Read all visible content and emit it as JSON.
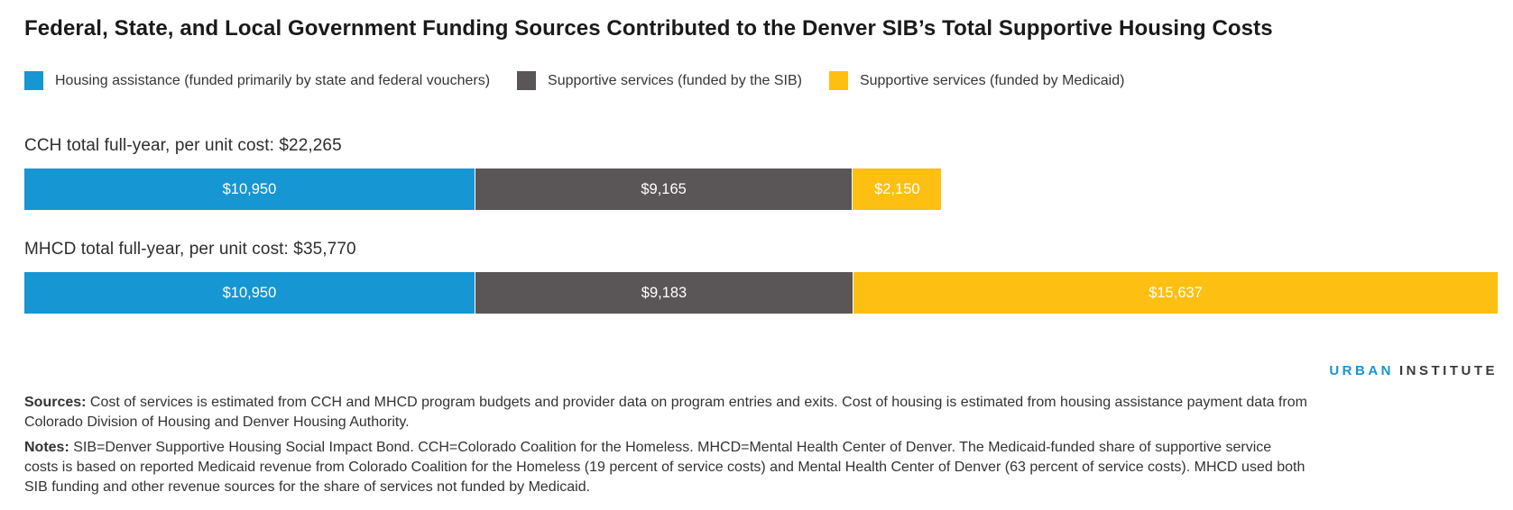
{
  "title": "Federal, State, and Local Government Funding Sources Contributed to the Denver SIB’s Total Supportive Housing Costs",
  "legend": [
    {
      "id": "housing-assistance",
      "label": "Housing assistance (funded primarily by state and federal vouchers)",
      "color": "#1696d2"
    },
    {
      "id": "services-sib",
      "label": "Supportive services (funded by the SIB)",
      "color": "#5a5556"
    },
    {
      "id": "services-medicaid",
      "label": "Supportive services (funded by Medicaid)",
      "color": "#fdbf11"
    }
  ],
  "chart_data": {
    "type": "bar",
    "orientation": "horizontal",
    "stacked": true,
    "unit": "US dollars per unit, full year",
    "categories": [
      "CCH",
      "MHCD"
    ],
    "bar_titles": [
      "CCH total full-year, per unit cost: $22,265",
      "MHCD total full-year, per unit cost: $35,770"
    ],
    "totals": [
      22265,
      35770
    ],
    "xmax": 35770,
    "grid": false,
    "legend_position": "top",
    "series": [
      {
        "name": "Housing assistance (funded primarily by state and federal vouchers)",
        "id": "housing-assistance",
        "color": "#1696d2",
        "values": [
          10950,
          10950
        ]
      },
      {
        "name": "Supportive services (funded by the SIB)",
        "id": "services-sib",
        "color": "#5a5556",
        "values": [
          9165,
          9183
        ]
      },
      {
        "name": "Supportive services (funded by Medicaid)",
        "id": "services-medicaid",
        "color": "#fdbf11",
        "values": [
          2150,
          15637
        ]
      }
    ],
    "value_labels": [
      [
        "$10,950",
        "$9,165",
        "$2,150"
      ],
      [
        "$10,950",
        "$9,183",
        "$15,637"
      ]
    ]
  },
  "logo": {
    "word1": "URBAN",
    "word2": "INSTITUTE"
  },
  "footer": {
    "sources_label": "Sources:",
    "sources_text": " Cost of services is estimated from CCH and MHCD program budgets and provider data on program entries and exits. Cost of housing is estimated from housing assistance payment data from Colorado Division of Housing and Denver Housing Authority.",
    "notes_label": "Notes:",
    "notes_text": " SIB=Denver Supportive Housing Social Impact Bond. CCH=Colorado Coalition for the Homeless. MHCD=Mental Health Center of Denver. The Medicaid-funded share of supportive service costs is based on reported Medicaid revenue from Colorado Coalition for the Homeless (19 percent of service costs) and Mental Health Center of Denver (63 percent of service costs). MHCD used both SIB funding and other revenue sources for the share of services not funded by Medicaid."
  }
}
